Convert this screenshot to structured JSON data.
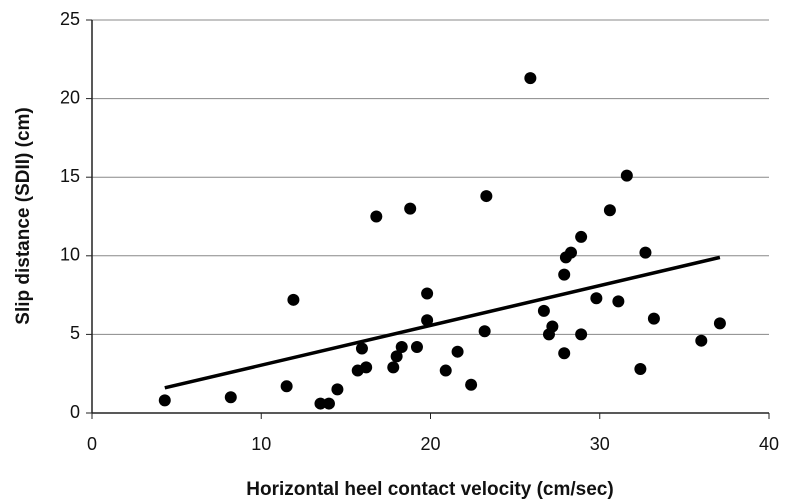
{
  "chart_data": {
    "type": "scatter",
    "x_label": "Horizontal heel contact velocity (cm/sec)",
    "y_label": "Slip distance (SDII) (cm)",
    "x": [
      4.3,
      8.2,
      11.5,
      11.9,
      13.5,
      14.0,
      14.5,
      15.7,
      15.95,
      16.2,
      16.8,
      17.8,
      18.0,
      18.3,
      18.8,
      19.2,
      19.8,
      19.8,
      20.9,
      21.6,
      22.4,
      23.2,
      23.3,
      25.9,
      26.7,
      27.0,
      27.2,
      27.9,
      27.9,
      28.0,
      28.3,
      28.9,
      28.9,
      29.8,
      30.6,
      31.1,
      31.6,
      32.4,
      32.7,
      33.2,
      36.0,
      37.1
    ],
    "values": [
      0.8,
      1.0,
      1.7,
      7.2,
      0.6,
      0.6,
      1.5,
      2.7,
      4.1,
      2.9,
      12.5,
      2.9,
      3.6,
      4.2,
      13.0,
      4.2,
      7.6,
      5.9,
      2.7,
      3.9,
      1.8,
      5.2,
      13.8,
      21.3,
      6.5,
      5.0,
      5.5,
      3.8,
      8.8,
      9.9,
      10.2,
      11.2,
      5.0,
      7.3,
      12.9,
      7.1,
      15.1,
      2.8,
      10.2,
      6.0,
      4.6,
      5.7
    ],
    "color": "#000000",
    "trendline": {
      "x": [
        4.3,
        37.1
      ],
      "values": [
        1.6,
        9.9
      ],
      "color": "#000000"
    },
    "xlim": [
      0,
      40
    ],
    "xticks": [
      0,
      10,
      20,
      30,
      40
    ],
    "ylim": [
      0,
      25
    ],
    "yticks": [
      0,
      5,
      10,
      15,
      20,
      25
    ],
    "grid": true
  }
}
